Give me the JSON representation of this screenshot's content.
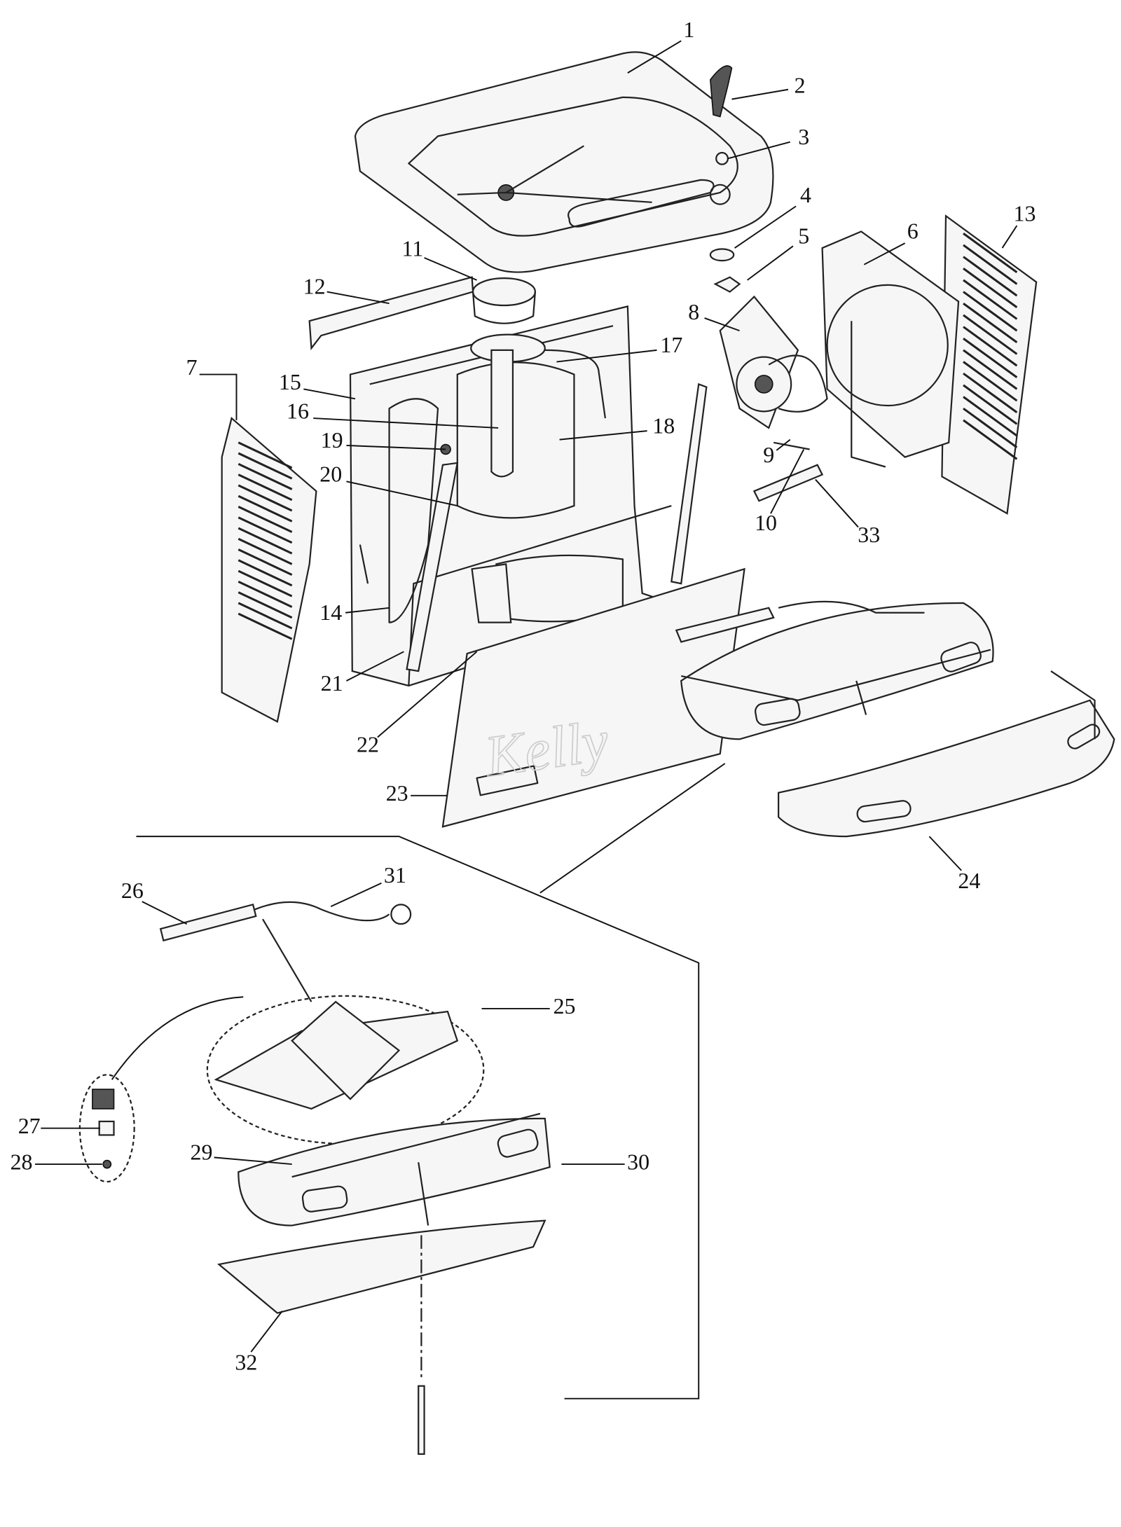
{
  "callouts": [
    "1",
    "2",
    "3",
    "4",
    "5",
    "6",
    "7",
    "8",
    "9",
    "10",
    "11",
    "12",
    "13",
    "14",
    "15",
    "16",
    "17",
    "18",
    "19",
    "20",
    "21",
    "22",
    "23",
    "24",
    "25",
    "26",
    "27",
    "28",
    "29",
    "30",
    "31",
    "32",
    "33"
  ],
  "watermark": "Kelly"
}
